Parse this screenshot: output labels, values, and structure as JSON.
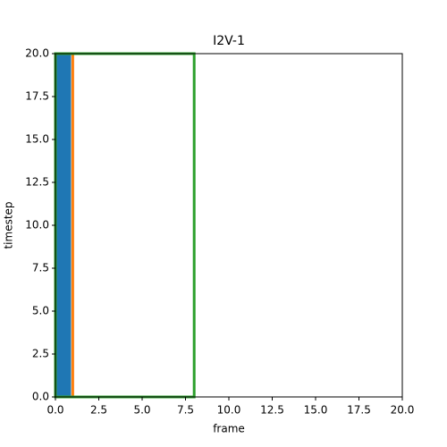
{
  "chart_data": {
    "type": "rect",
    "title": "I2V-1",
    "xlabel": "frame",
    "ylabel": "timestep",
    "rects": [
      {
        "x": [
          0,
          0.9
        ],
        "y": [
          0,
          20
        ],
        "color": "#1f77b4",
        "fill": true
      },
      {
        "x": [
          0,
          1
        ],
        "y": [
          0,
          20
        ],
        "color": "#ff7f0e",
        "fill": false
      },
      {
        "x": [
          0,
          8
        ],
        "y": [
          0,
          20
        ],
        "color": "#2ca02c",
        "fill": false
      }
    ],
    "xlim": [
      0,
      20
    ],
    "ylim": [
      0,
      20
    ],
    "xticks": [
      {
        "value": 0,
        "label": "0.0"
      },
      2.5,
      {
        "value": 5,
        "label": "5.0"
      },
      7.5,
      {
        "value": 10,
        "label": "10.0"
      },
      12.5,
      {
        "value": 15,
        "label": "15.0"
      },
      17.5,
      {
        "value": 20,
        "label": "20.0"
      }
    ],
    "yticks": [
      {
        "value": 0,
        "label": "0.0"
      },
      2.5,
      {
        "value": 5,
        "label": "5.0"
      },
      7.5,
      {
        "value": 10,
        "label": "10.0"
      },
      12.5,
      {
        "value": 15,
        "label": "15.0"
      },
      17.5,
      {
        "value": 20,
        "label": "20.0"
      }
    ]
  }
}
